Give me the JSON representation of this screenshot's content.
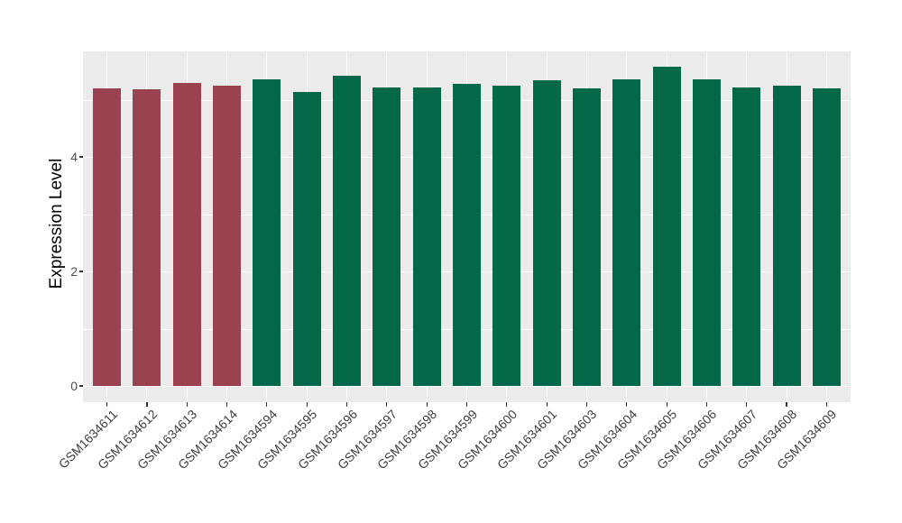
{
  "chart_data": {
    "type": "bar",
    "title": "",
    "xlabel": "",
    "ylabel": "Expression Level",
    "categories": [
      "GSM1634611",
      "GSM1634612",
      "GSM1634613",
      "GSM1634614",
      "GSM1634594",
      "GSM1634595",
      "GSM1634596",
      "GSM1634597",
      "GSM1634598",
      "GSM1634599",
      "GSM1634600",
      "GSM1634601",
      "GSM1634603",
      "GSM1634604",
      "GSM1634605",
      "GSM1634606",
      "GSM1634607",
      "GSM1634608",
      "GSM1634609"
    ],
    "values": [
      5.2,
      5.18,
      5.29,
      5.24,
      5.36,
      5.13,
      5.41,
      5.22,
      5.22,
      5.28,
      5.25,
      5.34,
      5.19,
      5.36,
      5.57,
      5.36,
      5.21,
      5.25,
      5.19
    ],
    "bar_colors": [
      "#9B4250",
      "#9B4250",
      "#9B4250",
      "#9B4250",
      "#03684A",
      "#03684A",
      "#03684A",
      "#03684A",
      "#03684A",
      "#03684A",
      "#03684A",
      "#03684A",
      "#03684A",
      "#03684A",
      "#03684A",
      "#03684A",
      "#03684A",
      "#03684A",
      "#03684A"
    ],
    "palette": {
      "maroon": "#9B4250",
      "green": "#03684A"
    },
    "yticks": [
      0,
      2,
      4
    ],
    "yticks_minor": [
      1,
      3,
      5
    ],
    "ylim": [
      -0.28,
      5.84
    ],
    "grid": true,
    "legend": "none",
    "x_tick_label_angle": 45,
    "panel_bg": "#EBEBEB",
    "grid_color": "#FFFFFF",
    "axis_text_color": "#4D4D4D",
    "axis_title_color": "#000000"
  }
}
